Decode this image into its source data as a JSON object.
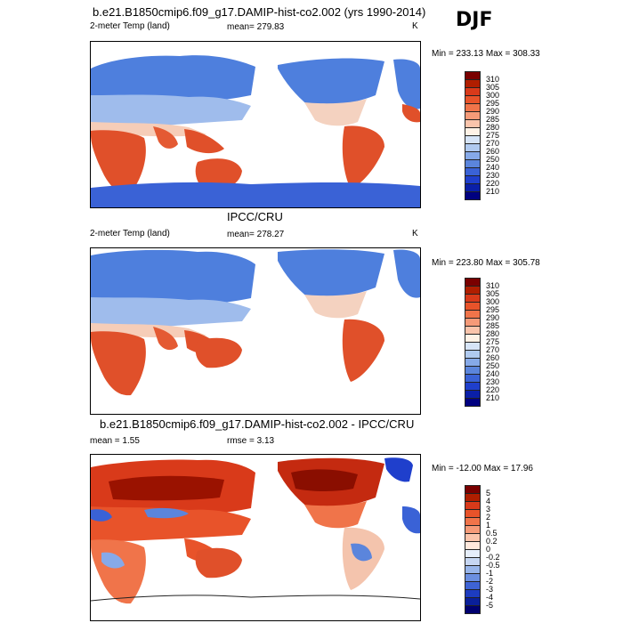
{
  "season": "DJF",
  "panels": [
    {
      "title": "b.e21.B1850cmip6.f09_g17.DAMIP-hist-co2.002 (yrs 1990-2014)",
      "left": "2-meter Temp (land)",
      "center": "mean= 279.83",
      "right": "K",
      "minmax": "Min = 233.13 Max = 308.33",
      "colorbar": [
        "310",
        "305",
        "300",
        "295",
        "290",
        "285",
        "280",
        "275",
        "270",
        "260",
        "250",
        "240",
        "230",
        "220",
        "210"
      ],
      "fill_level": 0.15
    },
    {
      "title": "IPCC/CRU",
      "left": "2-meter Temp (land)",
      "center": "mean= 278.27",
      "right": "K",
      "minmax": "Min = 223.80 Max = 305.78",
      "colorbar": [
        "310",
        "305",
        "300",
        "295",
        "290",
        "285",
        "280",
        "275",
        "270",
        "260",
        "250",
        "240",
        "230",
        "220",
        "210"
      ]
    },
    {
      "title": "b.e21.B1850cmip6.f09_g17.DAMIP-hist-co2.002 - IPCC/CRU",
      "left": "mean =   1.55",
      "center": "rmse =   3.13",
      "right": "",
      "minmax": "Min = -12.00 Max =  17.96",
      "colorbar": [
        "5",
        "4",
        "3",
        "2",
        "1",
        "0.5",
        "0.2",
        "0",
        "-0.2",
        "-0.5",
        "-1",
        "-2",
        "-3",
        "-4",
        "-5"
      ]
    }
  ],
  "colors": {
    "temp_scale": [
      "#7a0000",
      "#b01e00",
      "#d93a1a",
      "#e8532a",
      "#f0744a",
      "#f59a78",
      "#fac4ab",
      "#fff2e6",
      "#d6e4f7",
      "#b0caf0",
      "#86a9e8",
      "#5b85dc",
      "#3a62d6",
      "#1f3fcc",
      "#0a1fa8",
      "#000080"
    ],
    "diff_scale": [
      "#7a0000",
      "#b01e00",
      "#d93a1a",
      "#e8532a",
      "#f0744a",
      "#f59a78",
      "#fac4ab",
      "#ffe8dc",
      "#e6eefa",
      "#c6d6f2",
      "#98b5ea",
      "#6b8fe0",
      "#3e63d4",
      "#1d3cc0",
      "#0a1f9a",
      "#000070"
    ],
    "land_warm": "#e0502a",
    "land_cold": "#4e7fdd",
    "land_mid": "#f4d2c0"
  }
}
